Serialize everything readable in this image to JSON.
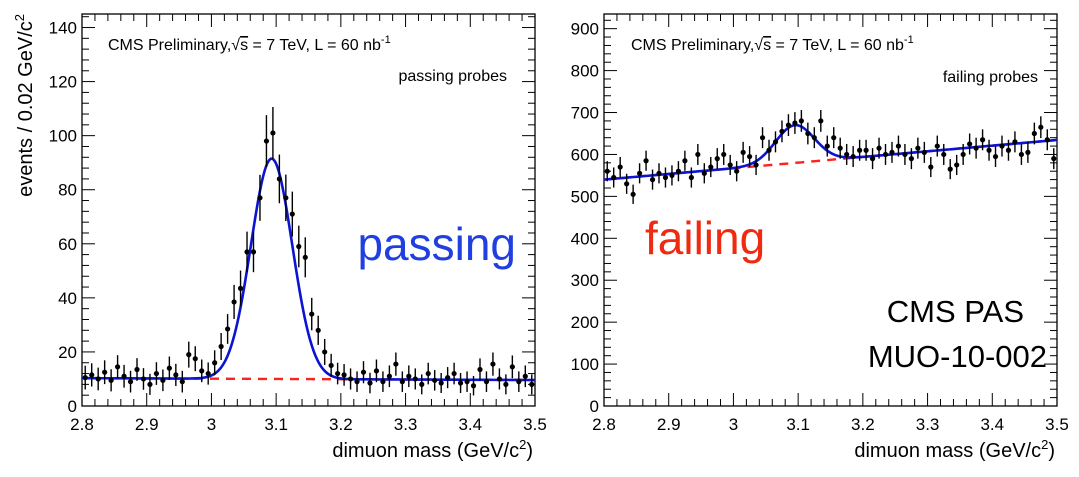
{
  "chart_data": [
    {
      "type": "scatter",
      "panel": "passing",
      "header": "CMS Preliminary, √s = 7 TeV, L = 60 nb⁻¹",
      "header_parts": {
        "prefix": "CMS Preliminary,",
        "sqrt": "s",
        "mid": " = 7 TeV, L = 60 nb",
        "sup": "-1"
      },
      "subtitle": "passing probes",
      "big_label": "passing",
      "big_label_color": "#1f3fe0",
      "xlabel": "dimuon mass (GeV/c²)",
      "xlabel_parts": {
        "text": "dimuon mass (GeV/c",
        "sup": "2",
        "tail": ")"
      },
      "ylabel": "events / 0.02 GeV/c²",
      "ylabel_parts": {
        "text": "events / 0.02 GeV/c",
        "sup": "2"
      },
      "xlim": [
        2.8,
        3.5
      ],
      "ylim": [
        0,
        145
      ],
      "xticks": [
        "2.8",
        "2.9",
        "3",
        "3.1",
        "3.2",
        "3.3",
        "3.4",
        "3.5"
      ],
      "yticks": [
        "0",
        "20",
        "40",
        "60",
        "80",
        "100",
        "120",
        "140"
      ],
      "fit": {
        "name": "signal + background",
        "color": "#0a14d2",
        "peak_mass": 3.093,
        "sigma": 0.032,
        "amplitude": 81.5,
        "bg_at_2_8": 10.3,
        "bg_slope": -1.0
      },
      "background": {
        "name": "background",
        "color": "#ff2020",
        "style": "dashed"
      },
      "points": [
        [
          2.805,
          10.5,
          4.4
        ],
        [
          2.815,
          11.5,
          4.3
        ],
        [
          2.825,
          10.0,
          4.2
        ],
        [
          2.835,
          12.5,
          4.4
        ],
        [
          2.845,
          9.5,
          4.1
        ],
        [
          2.855,
          14.5,
          4.3
        ],
        [
          2.865,
          11.0,
          4.2
        ],
        [
          2.875,
          9.0,
          4.0
        ],
        [
          2.885,
          13.5,
          4.2
        ],
        [
          2.895,
          10.0,
          4.0
        ],
        [
          2.905,
          8.0,
          3.9
        ],
        [
          2.915,
          12.0,
          4.2
        ],
        [
          2.925,
          9.5,
          4.0
        ],
        [
          2.935,
          14.0,
          4.3
        ],
        [
          2.945,
          11.5,
          4.1
        ],
        [
          2.955,
          9.0,
          4.0
        ],
        [
          2.965,
          19.0,
          4.8
        ],
        [
          2.975,
          17.5,
          4.6
        ],
        [
          2.985,
          13.0,
          4.2
        ],
        [
          2.995,
          12.0,
          4.1
        ],
        [
          3.005,
          16.0,
          4.6
        ],
        [
          3.015,
          22.0,
          5.0
        ],
        [
          3.025,
          28.5,
          5.5
        ],
        [
          3.035,
          38.5,
          6.3
        ],
        [
          3.045,
          43.5,
          6.6
        ],
        [
          3.055,
          57.0,
          7.5
        ],
        [
          3.065,
          57.0,
          7.5
        ],
        [
          3.075,
          77.0,
          8.5
        ],
        [
          3.085,
          98.0,
          9.6
        ],
        [
          3.095,
          101.0,
          9.6
        ],
        [
          3.105,
          84.0,
          9.0
        ],
        [
          3.115,
          77.0,
          8.6
        ],
        [
          3.125,
          71.0,
          8.3
        ],
        [
          3.135,
          59.0,
          7.7
        ],
        [
          3.145,
          55.0,
          7.4
        ],
        [
          3.155,
          34.0,
          6.0
        ],
        [
          3.165,
          28.0,
          5.4
        ],
        [
          3.175,
          20.0,
          4.8
        ],
        [
          3.185,
          15.0,
          4.3
        ],
        [
          3.195,
          12.0,
          4.0
        ],
        [
          3.205,
          11.5,
          4.0
        ],
        [
          3.215,
          10.0,
          3.9
        ],
        [
          3.225,
          9.0,
          3.8
        ],
        [
          3.235,
          12.5,
          4.1
        ],
        [
          3.245,
          8.5,
          3.8
        ],
        [
          3.255,
          13.0,
          4.2
        ],
        [
          3.265,
          9.0,
          3.8
        ],
        [
          3.275,
          11.0,
          4.0
        ],
        [
          3.285,
          15.5,
          4.3
        ],
        [
          3.295,
          9.0,
          3.8
        ],
        [
          3.305,
          11.0,
          4.0
        ],
        [
          3.315,
          10.0,
          3.9
        ],
        [
          3.325,
          8.0,
          3.7
        ],
        [
          3.335,
          12.0,
          4.0
        ],
        [
          3.345,
          9.5,
          3.8
        ],
        [
          3.355,
          8.5,
          3.7
        ],
        [
          3.365,
          10.5,
          3.9
        ],
        [
          3.375,
          12.0,
          4.0
        ],
        [
          3.385,
          8.5,
          3.7
        ],
        [
          3.395,
          9.0,
          3.8
        ],
        [
          3.405,
          7.5,
          3.6
        ],
        [
          3.415,
          13.5,
          4.1
        ],
        [
          3.425,
          9.0,
          3.8
        ],
        [
          3.435,
          15.5,
          4.3
        ],
        [
          3.445,
          10.0,
          3.9
        ],
        [
          3.455,
          8.0,
          3.7
        ],
        [
          3.465,
          14.5,
          4.2
        ],
        [
          3.475,
          9.0,
          3.8
        ],
        [
          3.485,
          11.0,
          4.0
        ],
        [
          3.495,
          8.0,
          3.7
        ]
      ]
    },
    {
      "type": "scatter",
      "panel": "failing",
      "header": "CMS Preliminary, √s = 7 TeV, L = 60 nb⁻¹",
      "header_parts": {
        "prefix": "CMS Preliminary,",
        "sqrt": "s",
        "mid": " = 7 TeV, L = 60 nb",
        "sup": "-1"
      },
      "subtitle": "failing probes",
      "big_label": "failing",
      "big_label_color": "#f02a10",
      "xlabel": "dimuon mass (GeV/c²)",
      "xlabel_parts": {
        "text": "dimuon mass (GeV/c",
        "sup": "2",
        "tail": ")"
      },
      "ylabel": "",
      "xlim": [
        2.8,
        3.5
      ],
      "ylim": [
        0,
        935
      ],
      "xticks": [
        "2.8",
        "2.9",
        "3",
        "3.1",
        "3.2",
        "3.3",
        "3.4",
        "3.5"
      ],
      "yticks": [
        "0",
        "100",
        "200",
        "300",
        "400",
        "500",
        "600",
        "700",
        "800",
        "900"
      ],
      "fit": {
        "name": "signal + background",
        "color": "#0a14d2",
        "peak_mass": 3.095,
        "sigma": 0.03,
        "amplitude": 90,
        "bg_at_2_8": 540,
        "bg_slope": 135
      },
      "background": {
        "name": "background",
        "color": "#ff2020",
        "style": "dashed"
      },
      "points": [
        [
          2.805,
          560,
          24
        ],
        [
          2.815,
          545,
          24
        ],
        [
          2.825,
          570,
          24
        ],
        [
          2.835,
          530,
          24
        ],
        [
          2.845,
          505,
          23
        ],
        [
          2.855,
          555,
          24
        ],
        [
          2.865,
          585,
          24
        ],
        [
          2.875,
          540,
          24
        ],
        [
          2.885,
          555,
          24
        ],
        [
          2.895,
          545,
          24
        ],
        [
          2.905,
          550,
          24
        ],
        [
          2.915,
          560,
          24
        ],
        [
          2.925,
          585,
          24
        ],
        [
          2.935,
          545,
          24
        ],
        [
          2.945,
          600,
          25
        ],
        [
          2.955,
          555,
          24
        ],
        [
          2.965,
          570,
          24
        ],
        [
          2.975,
          590,
          25
        ],
        [
          2.985,
          600,
          25
        ],
        [
          2.995,
          575,
          24
        ],
        [
          3.005,
          560,
          24
        ],
        [
          3.015,
          605,
          25
        ],
        [
          3.025,
          595,
          25
        ],
        [
          3.035,
          575,
          24
        ],
        [
          3.045,
          640,
          25
        ],
        [
          3.055,
          610,
          25
        ],
        [
          3.065,
          630,
          25
        ],
        [
          3.075,
          655,
          26
        ],
        [
          3.085,
          670,
          26
        ],
        [
          3.095,
          675,
          26
        ],
        [
          3.105,
          680,
          26
        ],
        [
          3.115,
          650,
          26
        ],
        [
          3.125,
          640,
          25
        ],
        [
          3.135,
          680,
          26
        ],
        [
          3.145,
          620,
          25
        ],
        [
          3.155,
          640,
          25
        ],
        [
          3.165,
          615,
          25
        ],
        [
          3.175,
          600,
          25
        ],
        [
          3.185,
          595,
          25
        ],
        [
          3.195,
          610,
          25
        ],
        [
          3.205,
          610,
          25
        ],
        [
          3.215,
          590,
          25
        ],
        [
          3.225,
          615,
          25
        ],
        [
          3.235,
          600,
          25
        ],
        [
          3.245,
          605,
          25
        ],
        [
          3.255,
          620,
          25
        ],
        [
          3.265,
          600,
          25
        ],
        [
          3.275,
          590,
          25
        ],
        [
          3.285,
          615,
          25
        ],
        [
          3.295,
          605,
          25
        ],
        [
          3.305,
          570,
          24
        ],
        [
          3.315,
          620,
          25
        ],
        [
          3.325,
          600,
          25
        ],
        [
          3.335,
          565,
          24
        ],
        [
          3.345,
          575,
          24
        ],
        [
          3.355,
          600,
          25
        ],
        [
          3.365,
          625,
          25
        ],
        [
          3.375,
          615,
          25
        ],
        [
          3.385,
          635,
          25
        ],
        [
          3.395,
          610,
          25
        ],
        [
          3.405,
          595,
          25
        ],
        [
          3.415,
          620,
          25
        ],
        [
          3.425,
          610,
          25
        ],
        [
          3.435,
          630,
          25
        ],
        [
          3.445,
          600,
          25
        ],
        [
          3.455,
          605,
          25
        ],
        [
          3.465,
          650,
          26
        ],
        [
          3.475,
          665,
          26
        ],
        [
          3.485,
          635,
          25
        ],
        [
          3.495,
          590,
          25
        ]
      ]
    }
  ],
  "pas_lines": [
    "CMS PAS",
    "MUO-10-002"
  ]
}
